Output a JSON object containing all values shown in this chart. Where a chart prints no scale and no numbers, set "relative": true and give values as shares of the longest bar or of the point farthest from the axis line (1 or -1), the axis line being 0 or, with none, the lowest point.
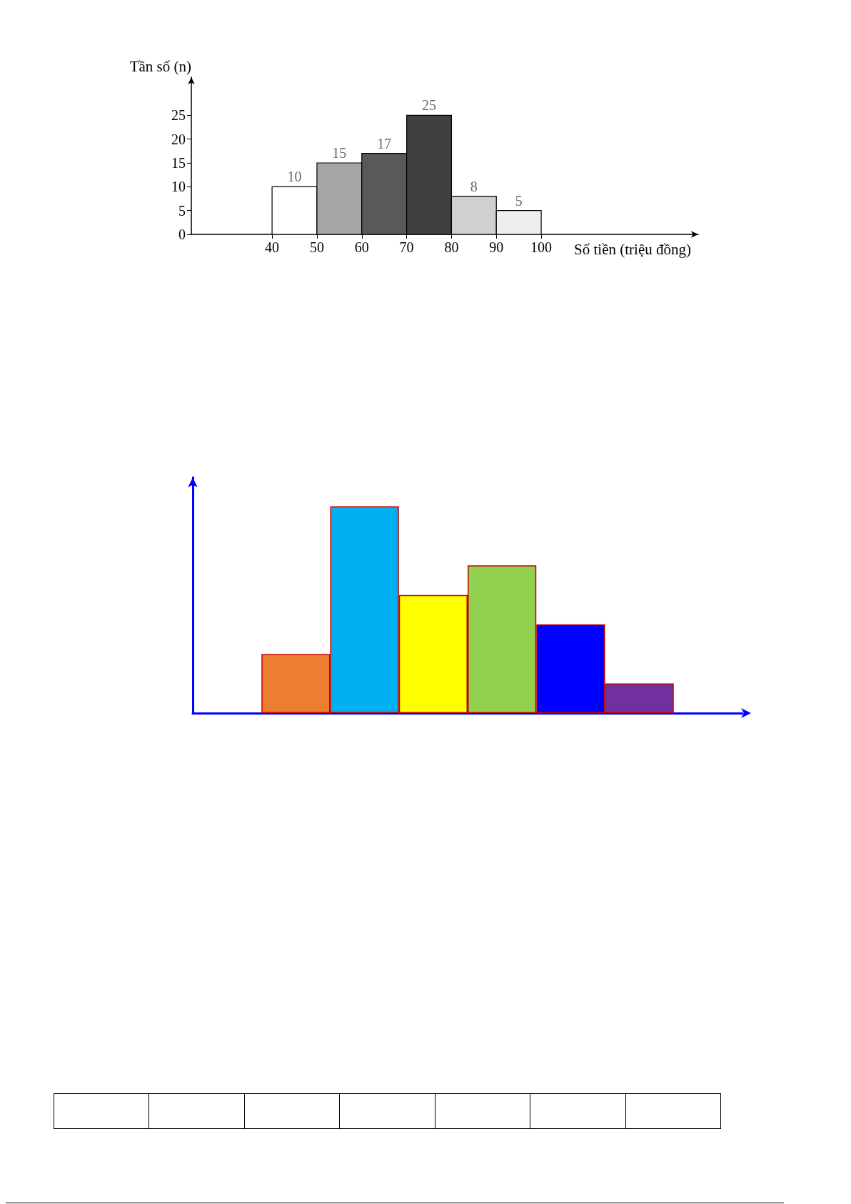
{
  "chart_data": [
    {
      "type": "histogram",
      "xlabel": "Số tiền (triệu đồng)",
      "ylabel": "Tần số (n)",
      "bins": [
        40,
        50,
        60,
        70,
        80,
        90,
        100
      ],
      "values": [
        10,
        15,
        17,
        25,
        8,
        5
      ],
      "colors": [
        "#ffffff",
        "#a6a6a6",
        "#595959",
        "#404040",
        "#d0d0d0",
        "#eeeeee"
      ],
      "data_labels": true,
      "xlim": [
        22,
        135
      ],
      "xticks": [
        40,
        50,
        60,
        70,
        80,
        90,
        100
      ],
      "ylim": [
        0,
        33
      ],
      "yticks": [
        0,
        5,
        10,
        15,
        20,
        25
      ]
    },
    {
      "type": "bar",
      "categories": [
        null,
        null,
        null,
        null,
        null,
        null
      ],
      "values": [
        0.286,
        1,
        0.571,
        0.714,
        0.429,
        0.143
      ],
      "colors": [
        "#ed7d31",
        "#00b0f0",
        "#ffff00",
        "#92d050",
        "#0000ff",
        "#7030a0"
      ],
      "relative": true
    }
  ]
}
